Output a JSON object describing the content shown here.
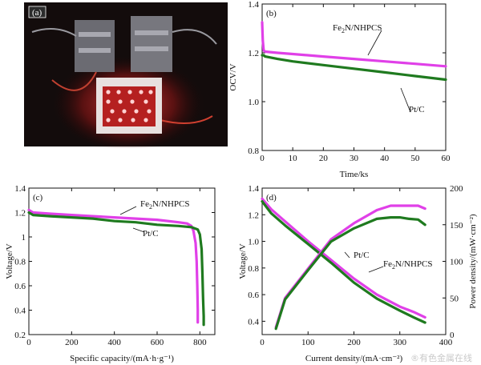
{
  "colors": {
    "fe2n": "#e040e8",
    "ptc": "#1f7a1f",
    "axis": "#111111"
  },
  "panel_a": {
    "label": "(a)"
  },
  "watermark": "®有色金属在线",
  "chart_data": [
    {
      "id": "b",
      "type": "line",
      "panel_label": "(b)",
      "xlabel": "Time/ks",
      "ylabel": "OCV/V",
      "xlim": [
        0,
        60
      ],
      "ylim": [
        0.8,
        1.4
      ],
      "xticks": [
        0,
        10,
        20,
        30,
        40,
        50,
        60
      ],
      "yticks": [
        0.8,
        1.0,
        1.2,
        1.4
      ],
      "series": [
        {
          "name": "Fe2N/NHPCS",
          "label_main": "Fe",
          "label_sub": "2",
          "label_rest": "N/NHPCS",
          "color_key": "fe2n",
          "x": [
            0,
            0.2,
            0.5,
            1,
            5,
            10,
            20,
            30,
            40,
            50,
            60
          ],
          "y": [
            1.325,
            1.25,
            1.21,
            1.205,
            1.2,
            1.195,
            1.185,
            1.175,
            1.165,
            1.155,
            1.145
          ]
        },
        {
          "name": "Pt/C",
          "label_main": "Pt/C",
          "color_key": "ptc",
          "x": [
            0,
            0.5,
            1,
            5,
            10,
            20,
            30,
            40,
            50,
            60
          ],
          "y": [
            1.19,
            1.19,
            1.185,
            1.175,
            1.165,
            1.15,
            1.135,
            1.12,
            1.105,
            1.09
          ]
        }
      ]
    },
    {
      "id": "c",
      "type": "line",
      "panel_label": "(c)",
      "xlabel": "Specific capacity/(mA·h·g⁻¹)",
      "ylabel": "Voltage/V",
      "xlim": [
        0,
        870
      ],
      "ylim": [
        0.2,
        1.4
      ],
      "xticks": [
        0,
        200,
        400,
        600,
        800
      ],
      "yticks": [
        0.2,
        0.4,
        0.6,
        0.8,
        1.0,
        1.2,
        1.4
      ],
      "ytick_labels": [
        "0.2",
        "0.4",
        "0.6",
        "0.8",
        "1",
        "1.2",
        "1.4"
      ],
      "series": [
        {
          "name": "Fe2N/NHPCS",
          "label_main": "Fe",
          "label_sub": "2",
          "label_rest": "N/NHPCS",
          "color_key": "fe2n",
          "x": [
            0,
            20,
            100,
            200,
            300,
            400,
            500,
            600,
            700,
            740,
            760,
            770,
            780,
            785,
            788,
            790,
            790
          ],
          "y": [
            1.22,
            1.2,
            1.19,
            1.18,
            1.17,
            1.16,
            1.15,
            1.14,
            1.12,
            1.11,
            1.09,
            1.05,
            0.95,
            0.8,
            0.6,
            0.4,
            0.3
          ]
        },
        {
          "name": "Pt/C",
          "label_main": "Pt/C",
          "color_key": "ptc",
          "x": [
            0,
            20,
            100,
            200,
            300,
            400,
            500,
            600,
            700,
            760,
            790,
            800,
            808,
            812,
            815,
            818,
            818
          ],
          "y": [
            1.2,
            1.18,
            1.17,
            1.16,
            1.15,
            1.13,
            1.12,
            1.1,
            1.09,
            1.08,
            1.06,
            1.02,
            0.9,
            0.7,
            0.5,
            0.35,
            0.28
          ]
        }
      ]
    },
    {
      "id": "d",
      "type": "line",
      "panel_label": "(d)",
      "xlabel": "Current density/(mA·cm⁻²)",
      "ylabel": "Voltage/V",
      "y2label": "Power density/(mW·cm⁻²)",
      "xlim": [
        0,
        400
      ],
      "ylim": [
        0.3,
        1.4
      ],
      "y2lim": [
        0,
        200
      ],
      "xticks": [
        0,
        100,
        200,
        300,
        400
      ],
      "yticks": [
        0.4,
        0.6,
        0.8,
        1.0,
        1.2,
        1.4
      ],
      "y2ticks": [
        0,
        50,
        100,
        150,
        200
      ],
      "series": [
        {
          "name": "Fe2N/NHPCS",
          "label_main": "Fe",
          "label_sub": "2",
          "label_rest": "N/NHPCS",
          "color_key": "fe2n",
          "axis": "left",
          "x": [
            0,
            20,
            50,
            100,
            150,
            200,
            250,
            300,
            330,
            355
          ],
          "y": [
            1.32,
            1.24,
            1.15,
            1.0,
            0.86,
            0.72,
            0.6,
            0.51,
            0.47,
            0.43
          ]
        },
        {
          "name": "Pt/C",
          "label_main": "Pt/C",
          "color_key": "ptc",
          "axis": "left",
          "x": [
            0,
            20,
            50,
            100,
            150,
            200,
            250,
            300,
            330,
            355
          ],
          "y": [
            1.3,
            1.21,
            1.12,
            0.98,
            0.84,
            0.69,
            0.57,
            0.48,
            0.43,
            0.39
          ]
        },
        {
          "name": "Fe2N/NHPCS power",
          "color_key": "fe2n",
          "axis": "right",
          "x": [
            30,
            50,
            100,
            150,
            200,
            250,
            280,
            300,
            320,
            340,
            355
          ],
          "y": [
            10,
            50,
            90,
            130,
            152,
            170,
            176,
            176,
            176,
            176,
            172
          ]
        },
        {
          "name": "Pt/C power",
          "color_key": "ptc",
          "axis": "right",
          "x": [
            30,
            50,
            100,
            150,
            200,
            250,
            280,
            300,
            320,
            340,
            355
          ],
          "y": [
            8,
            48,
            88,
            127,
            145,
            158,
            160,
            160,
            158,
            157,
            150
          ]
        }
      ]
    }
  ]
}
